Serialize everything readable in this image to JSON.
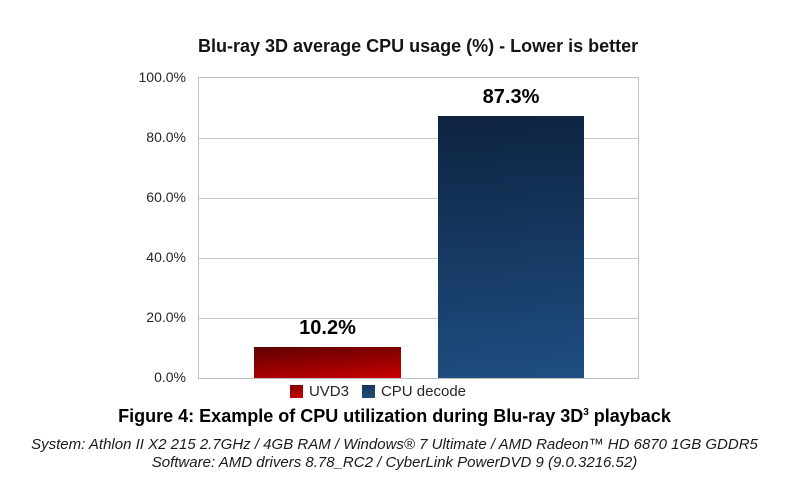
{
  "chart_data": {
    "type": "bar",
    "title": "Blu-ray 3D average CPU usage (%) - Lower is better",
    "categories": [
      "UVD3",
      "CPU decode"
    ],
    "values": [
      10.2,
      87.3
    ],
    "value_labels": [
      "10.2%",
      "87.3%"
    ],
    "ylabel": "",
    "xlabel": "",
    "ylim": [
      0,
      100
    ],
    "grid": "horizontal major gridlines every 20%",
    "legend_position": "bottom-center",
    "yticks": [
      {
        "value": 0,
        "label": "0.0%"
      },
      {
        "value": 20,
        "label": "20.0%"
      },
      {
        "value": 40,
        "label": "40.0%"
      },
      {
        "value": 60,
        "label": "60.0%"
      },
      {
        "value": 80,
        "label": "80.0%"
      },
      {
        "value": 100,
        "label": "100.0%"
      }
    ],
    "bars": [
      {
        "name": "UVD3",
        "value": 10.2,
        "data_label": "10.2%",
        "legend_color": "#c00000",
        "gradient_top": "#5e0101",
        "gradient_bottom": "#c90000"
      },
      {
        "name": "CPU decode",
        "value": 87.3,
        "data_label": "87.3%",
        "legend_color": "#1f4e79",
        "gradient_top": "#0d2340",
        "gradient_bottom": "#1e4e82"
      }
    ],
    "plot_border_color": "#bfbfbf",
    "gridline_color": "#c9c9c9"
  },
  "caption": {
    "prefix": "Figure 4: Example of CPU utilization during Blu-ray 3D",
    "superscript": "3",
    "suffix": " playback"
  },
  "footer": {
    "system_line": "System: Athlon II X2 215 2.7GHz / 4GB RAM / Windows® 7 Ultimate / AMD Radeon™ HD 6870 1GB GDDR5",
    "software_line": "Software: AMD drivers 8.78_RC2 / CyberLink PowerDVD 9 (9.0.3216.52)"
  }
}
